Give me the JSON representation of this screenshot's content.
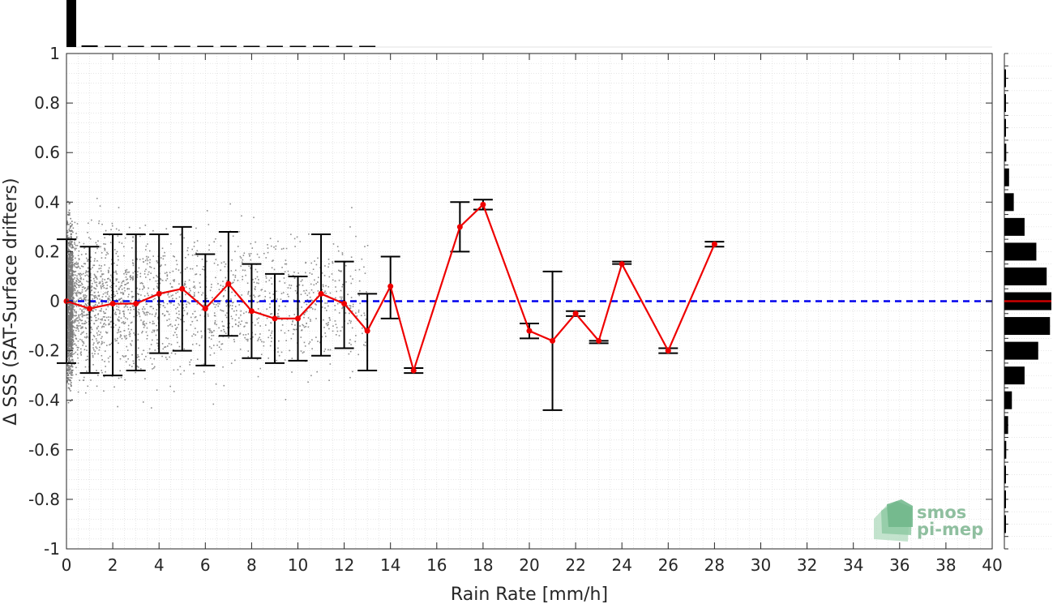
{
  "chart_data": {
    "type": "scatter",
    "xlabel": "Rain Rate [mm/h]",
    "ylabel": "Δ SSS (SAT-Surface drifters)",
    "xlim": [
      0,
      40
    ],
    "ylim": [
      -1,
      1
    ],
    "x_ticks": [
      "0",
      "2",
      "4",
      "6",
      "8",
      "10",
      "12",
      "14",
      "16",
      "18",
      "20",
      "22",
      "24",
      "26",
      "28",
      "30",
      "32",
      "34",
      "36",
      "38",
      "40"
    ],
    "y_ticks": [
      "1",
      "0.8",
      "0.6",
      "0.4",
      "0.2",
      "0",
      "-0.2",
      "-0.4",
      "-0.6",
      "-0.8",
      "-1"
    ],
    "grid": true,
    "reference_line": {
      "y": 0,
      "style": "dashed",
      "color": "#0000ee"
    },
    "mean_series": {
      "color": "#ee0000",
      "points": [
        {
          "x": 0,
          "y": 0.0,
          "lo": -0.25,
          "hi": 0.25
        },
        {
          "x": 1,
          "y": -0.03,
          "lo": -0.29,
          "hi": 0.22
        },
        {
          "x": 2,
          "y": -0.01,
          "lo": -0.3,
          "hi": 0.27
        },
        {
          "x": 3,
          "y": -0.01,
          "lo": -0.28,
          "hi": 0.27
        },
        {
          "x": 4,
          "y": 0.03,
          "lo": -0.21,
          "hi": 0.27
        },
        {
          "x": 5,
          "y": 0.05,
          "lo": -0.2,
          "hi": 0.3
        },
        {
          "x": 6,
          "y": -0.03,
          "lo": -0.26,
          "hi": 0.19
        },
        {
          "x": 7,
          "y": 0.07,
          "lo": -0.14,
          "hi": 0.28
        },
        {
          "x": 8,
          "y": -0.04,
          "lo": -0.23,
          "hi": 0.15
        },
        {
          "x": 9,
          "y": -0.07,
          "lo": -0.25,
          "hi": 0.11
        },
        {
          "x": 10,
          "y": -0.07,
          "lo": -0.24,
          "hi": 0.1
        },
        {
          "x": 11,
          "y": 0.03,
          "lo": -0.22,
          "hi": 0.27
        },
        {
          "x": 12,
          "y": -0.01,
          "lo": -0.19,
          "hi": 0.16
        },
        {
          "x": 13,
          "y": -0.12,
          "lo": -0.28,
          "hi": 0.03
        },
        {
          "x": 14,
          "y": 0.06,
          "lo": -0.07,
          "hi": 0.18
        },
        {
          "x": 15,
          "y": -0.28,
          "lo": -0.29,
          "hi": -0.27
        },
        {
          "x": 17,
          "y": 0.3,
          "lo": 0.2,
          "hi": 0.4
        },
        {
          "x": 18,
          "y": 0.39,
          "lo": 0.37,
          "hi": 0.41
        },
        {
          "x": 20,
          "y": -0.12,
          "lo": -0.15,
          "hi": -0.09
        },
        {
          "x": 21,
          "y": -0.16,
          "lo": -0.44,
          "hi": 0.12
        },
        {
          "x": 22,
          "y": -0.05,
          "lo": -0.06,
          "hi": -0.04
        },
        {
          "x": 23,
          "y": -0.16,
          "lo": -0.17,
          "hi": -0.16
        },
        {
          "x": 24,
          "y": 0.15,
          "lo": 0.15,
          "hi": 0.16
        },
        {
          "x": 26,
          "y": -0.2,
          "lo": -0.21,
          "hi": -0.19
        },
        {
          "x": 28,
          "y": 0.23,
          "lo": 0.22,
          "hi": 0.24
        }
      ]
    },
    "top_histogram": {
      "color": "#000000",
      "bins": [
        {
          "x": 0.25,
          "fraction": 1.0
        },
        {
          "x": 1.0,
          "fraction": 0.035
        },
        {
          "x": 2.0,
          "fraction": 0.02
        },
        {
          "x": 3.0,
          "fraction": 0.015
        },
        {
          "x": 4.0,
          "fraction": 0.01
        },
        {
          "x": 5.0,
          "fraction": 0.008
        },
        {
          "x": 6.0,
          "fraction": 0.006
        },
        {
          "x": 7.0,
          "fraction": 0.005
        },
        {
          "x": 8.0,
          "fraction": 0.004
        },
        {
          "x": 9.0,
          "fraction": 0.004
        },
        {
          "x": 10.0,
          "fraction": 0.003
        },
        {
          "x": 11.0,
          "fraction": 0.003
        },
        {
          "x": 12.0,
          "fraction": 0.002
        },
        {
          "x": 13.0,
          "fraction": 0.002
        }
      ]
    },
    "right_histogram": {
      "color": "#000000",
      "median_line_color": "#cc0000",
      "bins": [
        {
          "y": 0.9,
          "fraction": 0.02
        },
        {
          "y": 0.8,
          "fraction": 0.02
        },
        {
          "y": 0.7,
          "fraction": 0.03
        },
        {
          "y": 0.6,
          "fraction": 0.04
        },
        {
          "y": 0.5,
          "fraction": 0.1
        },
        {
          "y": 0.4,
          "fraction": 0.2
        },
        {
          "y": 0.3,
          "fraction": 0.43
        },
        {
          "y": 0.2,
          "fraction": 0.68
        },
        {
          "y": 0.1,
          "fraction": 0.9
        },
        {
          "y": 0.0,
          "fraction": 1.0
        },
        {
          "y": -0.1,
          "fraction": 0.97
        },
        {
          "y": -0.2,
          "fraction": 0.72
        },
        {
          "y": -0.3,
          "fraction": 0.43
        },
        {
          "y": -0.4,
          "fraction": 0.16
        },
        {
          "y": -0.5,
          "fraction": 0.08
        },
        {
          "y": -0.6,
          "fraction": 0.04
        },
        {
          "y": -0.7,
          "fraction": 0.02
        },
        {
          "y": -0.8,
          "fraction": 0.02
        },
        {
          "y": -0.9,
          "fraction": 0.02
        }
      ]
    },
    "scatter_cloud": {
      "color": "#8c8c8c",
      "description_range_x": [
        0,
        13
      ]
    }
  },
  "logo": {
    "line1": "smos",
    "line2": "pi-mep"
  }
}
